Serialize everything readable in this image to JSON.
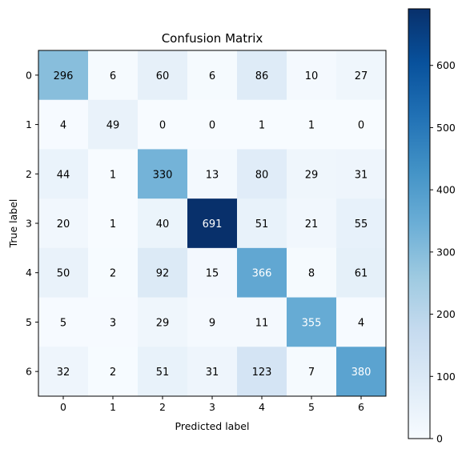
{
  "chart_data": {
    "type": "heatmap",
    "title": "Confusion Matrix",
    "xlabel": "Predicted label",
    "ylabel": "True label",
    "x_tick_labels": [
      "0",
      "1",
      "2",
      "3",
      "4",
      "5",
      "6"
    ],
    "y_tick_labels": [
      "0",
      "1",
      "2",
      "3",
      "4",
      "5",
      "6"
    ],
    "matrix": [
      [
        296,
        6,
        60,
        6,
        86,
        10,
        27
      ],
      [
        4,
        49,
        0,
        0,
        1,
        1,
        0
      ],
      [
        44,
        1,
        330,
        13,
        80,
        29,
        31
      ],
      [
        20,
        1,
        40,
        691,
        51,
        21,
        55
      ],
      [
        50,
        2,
        92,
        15,
        366,
        8,
        61
      ],
      [
        5,
        3,
        29,
        9,
        11,
        355,
        4
      ],
      [
        32,
        2,
        51,
        31,
        123,
        7,
        380
      ]
    ],
    "colormap": "Blues",
    "colorbar": {
      "min": 0,
      "max": 691,
      "tick_values": [
        0,
        100,
        200,
        300,
        400,
        500,
        600
      ],
      "tick_labels": [
        "0",
        "100",
        "200",
        "300",
        "400",
        "500",
        "600"
      ]
    },
    "grid": false,
    "text_color_threshold": 345.5,
    "colors": {
      "text_dark": "#000000",
      "text_light": "#ffffff"
    }
  }
}
